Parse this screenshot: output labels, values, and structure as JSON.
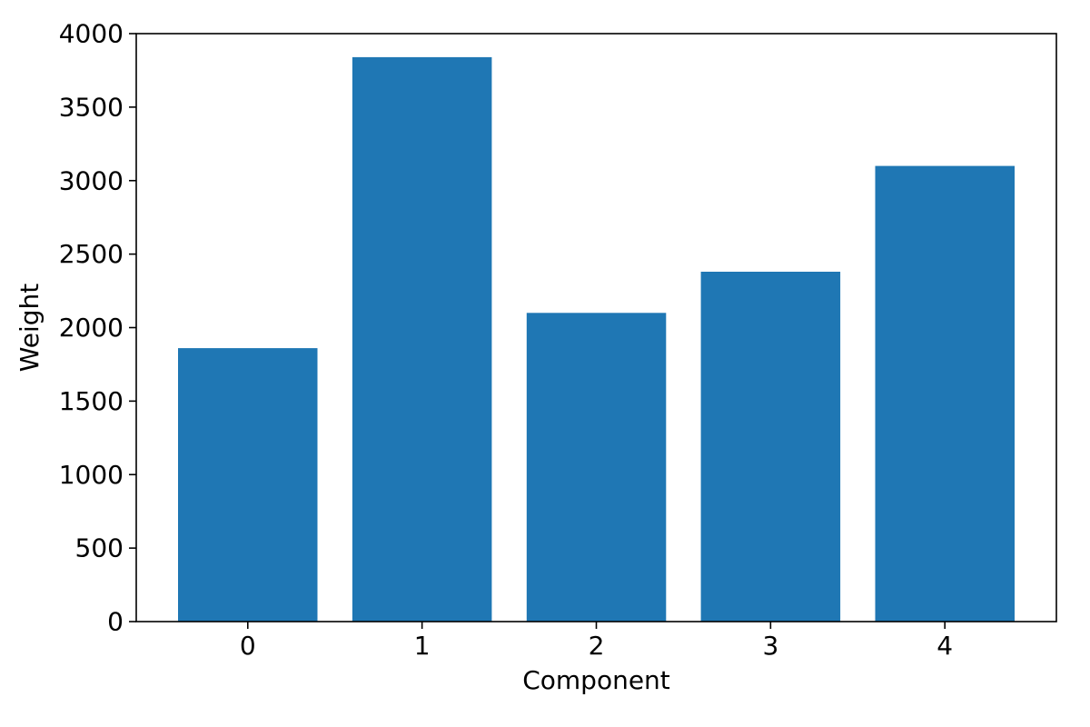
{
  "chart_data": {
    "type": "bar",
    "title": "",
    "xlabel": "Component",
    "ylabel": "Weight",
    "categories": [
      "0",
      "1",
      "2",
      "3",
      "4"
    ],
    "values": [
      1860,
      3840,
      2100,
      2380,
      3100
    ],
    "bar_color": "#1f77b4",
    "axis_color": "#000000",
    "background_color": "#ffffff",
    "xlim": [
      -0.64,
      4.64
    ],
    "ylim": [
      0,
      4000
    ],
    "yticks": [
      0,
      500,
      1000,
      1500,
      2000,
      2500,
      3000,
      3500,
      4000
    ],
    "bar_width_fraction": 0.8,
    "grid": false,
    "legend": "none"
  }
}
